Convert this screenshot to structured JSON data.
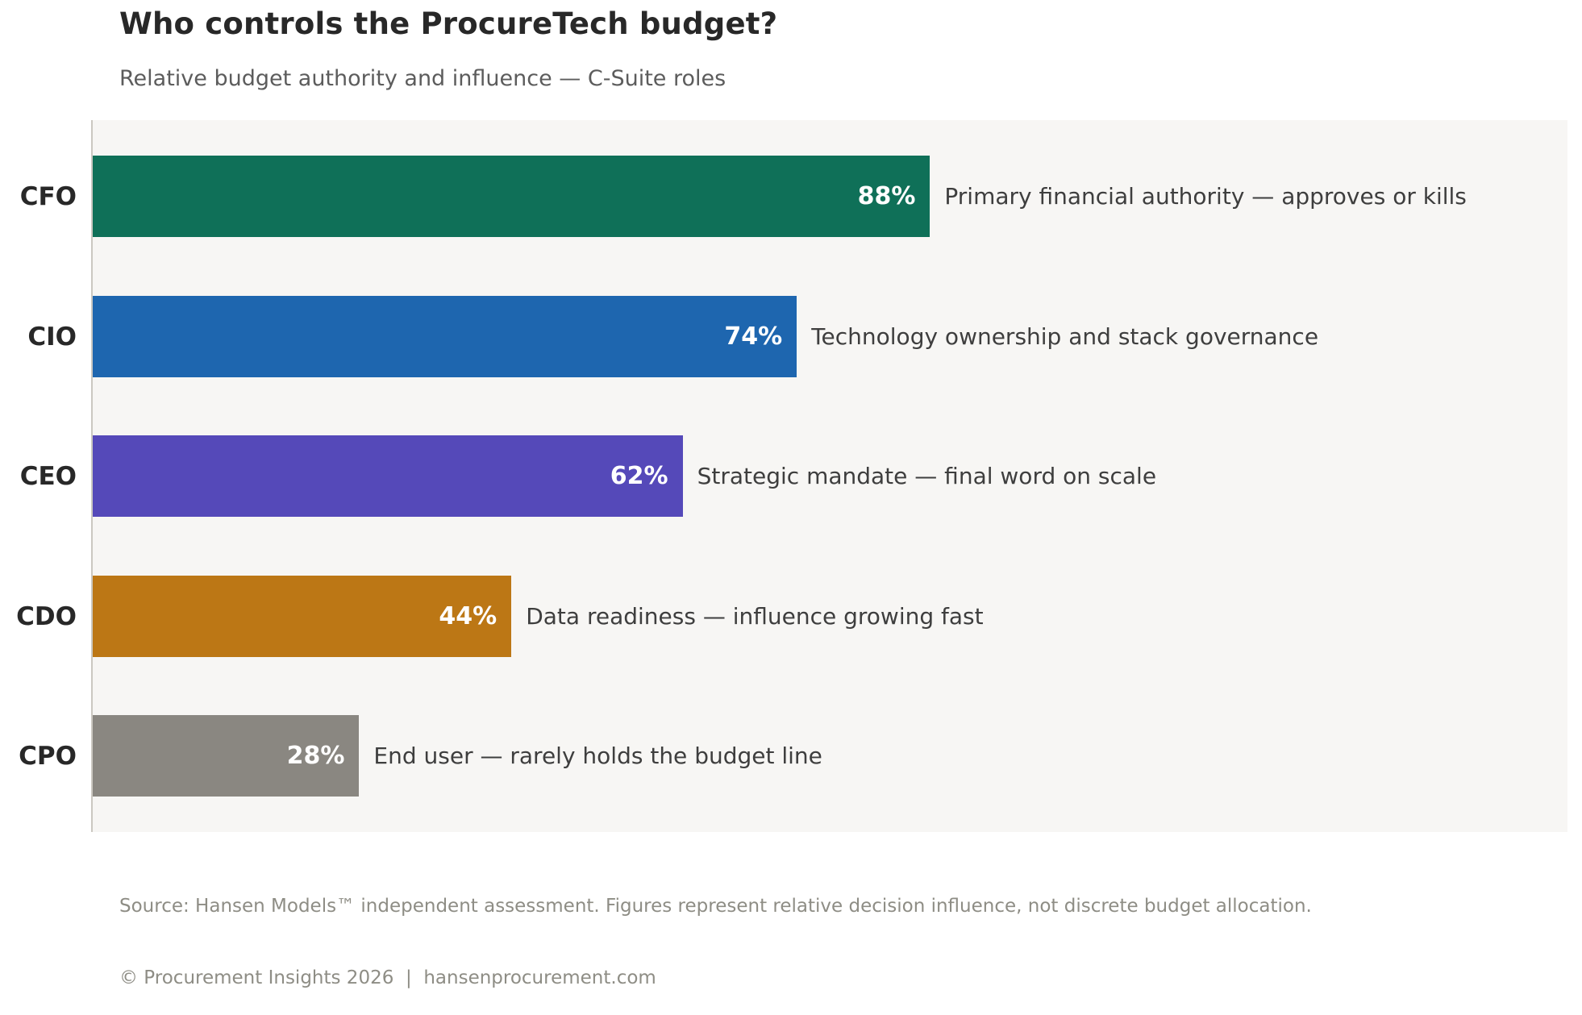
{
  "header": {
    "title": "Who controls the ProcureTech budget?",
    "subtitle": "Relative budget authority and influence — C-Suite roles"
  },
  "chart_data": {
    "type": "bar",
    "orientation": "horizontal",
    "title": "Who controls the ProcureTech budget?",
    "subtitle": "Relative budget authority and influence — C-Suite roles",
    "categories": [
      "CFO",
      "CIO",
      "CEO",
      "CDO",
      "CPO"
    ],
    "values": [
      88,
      74,
      62,
      44,
      28
    ],
    "value_labels": [
      "88%",
      "74%",
      "62%",
      "44%",
      "28%"
    ],
    "bar_annotations": [
      "Primary financial authority — approves or kills",
      "Technology ownership and stack governance",
      "Strategic mandate — final word on scale",
      "Data readiness — influence growing fast",
      "End user — rarely holds the budget line"
    ],
    "bar_colors": [
      "#0f7058",
      "#1e66af",
      "#5549b9",
      "#bc7715",
      "#8a8781"
    ],
    "xlim": [
      0,
      155
    ],
    "grid": false,
    "legend": false,
    "plot_background": "#f7f6f4",
    "axis_line_color": "#cbc8c1",
    "value_label_position": "inside-end",
    "value_label_color": "#ffffff"
  },
  "footer": {
    "source_line": "Source: Hansen Models™ independent assessment. Figures represent relative decision influence, not discrete budget allocation.",
    "copyright_line": "© Procurement Insights 2026  |  hansenprocurement.com"
  }
}
